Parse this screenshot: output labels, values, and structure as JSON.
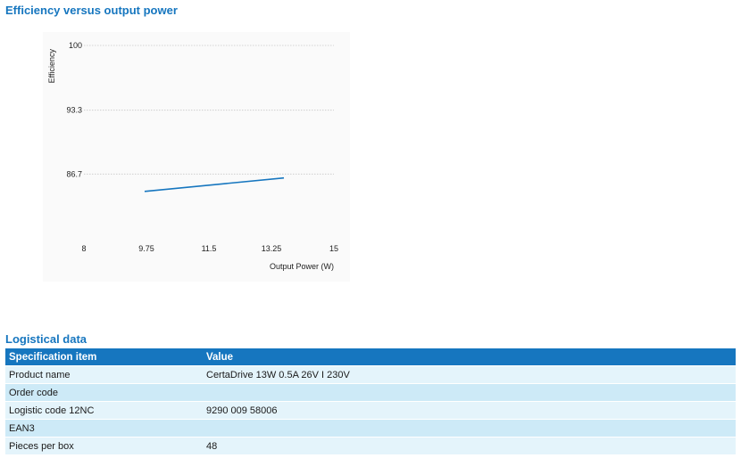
{
  "chart_section": {
    "title": "Efficiency versus output power"
  },
  "chart_data": {
    "type": "line",
    "title": "Efficiency versus output power",
    "xlabel": "Output Power (W)",
    "ylabel": "Efficiency",
    "xlim": [
      8,
      15
    ],
    "ylim": [
      80,
      100
    ],
    "x_ticks": [
      "8",
      "9.75",
      "11.5",
      "13.25",
      "15"
    ],
    "y_ticks": [
      "86.7",
      "93.3",
      "100"
    ],
    "x_tick_values": [
      8,
      9.75,
      11.5,
      13.25,
      15
    ],
    "y_tick_values": [
      86.7,
      93.3,
      100
    ],
    "grid": "horizontal",
    "colors": {
      "line": "#1676bf",
      "grid": "#c8c8c8"
    },
    "series": [
      {
        "x": [
          9.7,
          13.6
        ],
        "y": [
          84.9,
          86.3
        ]
      }
    ]
  },
  "logistics": {
    "title": "Logistical data",
    "headers": [
      "Specification item",
      "Value"
    ],
    "rows": [
      [
        "Product name",
        "CertaDrive 13W 0.5A 26V I 230V"
      ],
      [
        "Order code",
        ""
      ],
      [
        "Logistic code 12NC",
        "9290 009 58006"
      ],
      [
        "EAN3",
        ""
      ],
      [
        "Pieces per box",
        "48"
      ]
    ],
    "colors": {
      "header_bg": "#1676bf",
      "row_light": "#e4f4fb",
      "row_dark": "#cdeaf7"
    }
  }
}
